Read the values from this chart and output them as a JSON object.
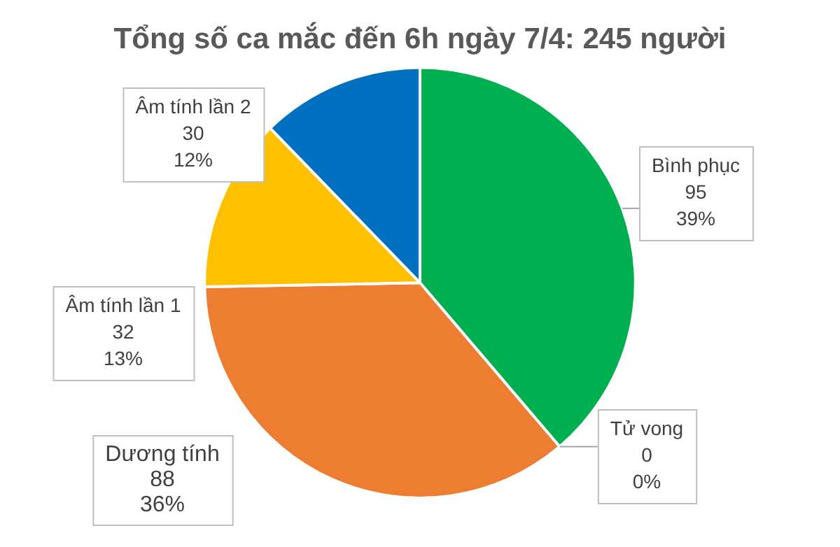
{
  "chart_data": {
    "type": "pie",
    "title": "Tổng số ca mắc đến 6h ngày 7/4: 245 người",
    "categories": [
      "Bình phục",
      "Tử vong",
      "Dương tính",
      "Âm tính lần 1",
      "Âm tính lần 2"
    ],
    "values": [
      95,
      0,
      88,
      32,
      30
    ],
    "colors": [
      "#00b050",
      "#7f7f7f",
      "#ed7d31",
      "#ffc000",
      "#0070c0"
    ],
    "value_labels": [
      "95\n39%",
      "0\n0%",
      "88\n36%",
      "32\n13%",
      "30\n12%"
    ],
    "legend": false
  }
}
